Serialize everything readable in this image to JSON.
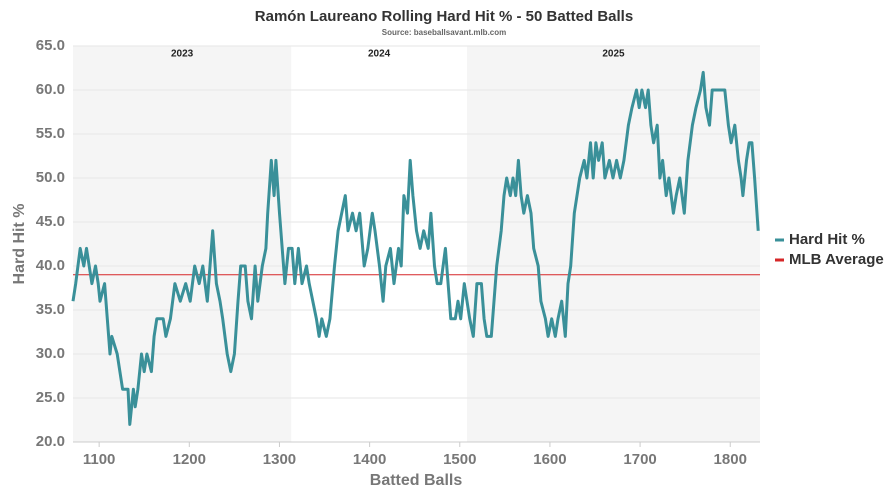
{
  "chart_data": {
    "type": "line",
    "title": "Ramón Laureano Rolling Hard Hit % - 50 Batted Balls",
    "subtitle": "Source: baseballsavant.mlb.com",
    "x_label": "Batted Balls",
    "y_label": "Hard Hit %",
    "xlim": [
      1071,
      1833
    ],
    "xticks": [
      1100,
      1200,
      1300,
      1400,
      1500,
      1600,
      1700,
      1800
    ],
    "ylim": [
      20,
      65
    ],
    "yticks": [
      {
        "value": 20,
        "label": "20.0"
      },
      {
        "value": 25,
        "label": "25.0"
      },
      {
        "value": 30,
        "label": "30.0"
      },
      {
        "value": 35,
        "label": "35.0"
      },
      {
        "value": 40,
        "label": "40.0"
      },
      {
        "value": 45,
        "label": "45.0"
      },
      {
        "value": 50,
        "label": "50.0"
      },
      {
        "value": 55,
        "label": "55.0"
      },
      {
        "value": 60,
        "label": "60.0"
      },
      {
        "value": 65,
        "label": "65.0"
      }
    ],
    "grid": true,
    "legend": "right",
    "seasons": [
      {
        "label": "2023",
        "start": 1071,
        "end": 1313,
        "shaded": true
      },
      {
        "label": "2024",
        "start": 1313,
        "end": 1508,
        "shaded": false
      },
      {
        "label": "2025",
        "start": 1508,
        "end": 1833,
        "shaded": true
      }
    ],
    "reference_line": {
      "name": "MLB Average",
      "value": 39,
      "color": "#d62728"
    },
    "series": [
      {
        "name": "Hard Hit %",
        "color": "#3a9099",
        "x": [
          1071,
          1074,
          1079,
          1083,
          1086,
          1089,
          1092,
          1096,
          1099,
          1101,
          1106,
          1109,
          1112,
          1114,
          1120,
          1123,
          1126,
          1132,
          1134,
          1138,
          1140,
          1143,
          1147,
          1150,
          1153,
          1158,
          1161,
          1164,
          1171,
          1174,
          1179,
          1184,
          1190,
          1196,
          1201,
          1206,
          1211,
          1215,
          1220,
          1226,
          1230,
          1234,
          1237,
          1242,
          1246,
          1250,
          1254,
          1257,
          1262,
          1265,
          1269,
          1273,
          1276,
          1281,
          1285,
          1287,
          1291,
          1294,
          1296,
          1300,
          1303,
          1306,
          1310,
          1314,
          1317,
          1321,
          1325,
          1330,
          1333,
          1337,
          1341,
          1344,
          1347,
          1352,
          1356,
          1361,
          1365,
          1369,
          1373,
          1376,
          1381,
          1385,
          1389,
          1394,
          1398,
          1403,
          1406,
          1411,
          1415,
          1418,
          1423,
          1427,
          1432,
          1435,
          1438,
          1442,
          1445,
          1448,
          1452,
          1456,
          1460,
          1465,
          1468,
          1472,
          1475,
          1479,
          1484,
          1487,
          1490,
          1495,
          1498,
          1501,
          1505,
          1508,
          1511,
          1515,
          1519,
          1524,
          1527,
          1530,
          1535,
          1538,
          1541,
          1546,
          1549,
          1552,
          1556,
          1559,
          1562,
          1565,
          1568,
          1571,
          1575,
          1579,
          1582,
          1587,
          1590,
          1595,
          1598,
          1602,
          1606,
          1609,
          1613,
          1617,
          1620,
          1623,
          1627,
          1630,
          1633,
          1638,
          1641,
          1645,
          1648,
          1651,
          1654,
          1658,
          1661,
          1666,
          1670,
          1674,
          1678,
          1682,
          1687,
          1691,
          1696,
          1699,
          1702,
          1706,
          1709,
          1712,
          1715,
          1719,
          1722,
          1725,
          1729,
          1732,
          1737,
          1740,
          1744,
          1749,
          1753,
          1758,
          1762,
          1767,
          1770,
          1773,
          1777,
          1780,
          1784,
          1789,
          1794,
          1798,
          1801,
          1805,
          1809,
          1812,
          1814,
          1818,
          1821,
          1824,
          1827,
          1831
        ],
        "values": [
          36,
          38,
          42,
          40,
          42,
          40,
          38,
          40,
          38,
          36,
          38,
          34,
          30,
          32,
          30,
          28,
          26,
          26,
          22,
          26,
          24,
          26,
          30,
          28,
          30,
          28,
          32,
          34,
          34,
          32,
          34,
          38,
          36,
          38,
          36,
          40,
          38,
          40,
          36,
          44,
          38,
          36,
          34,
          30,
          28,
          30,
          36,
          40,
          40,
          36,
          34,
          40,
          36,
          40,
          42,
          46,
          52,
          48,
          52,
          46,
          42,
          38,
          42,
          42,
          38,
          42,
          38,
          40,
          38,
          36,
          34,
          32,
          34,
          32,
          34,
          40,
          44,
          46,
          48,
          44,
          46,
          44,
          46,
          40,
          42,
          46,
          44,
          40,
          36,
          40,
          42,
          38,
          42,
          40,
          48,
          46,
          52,
          48,
          44,
          42,
          44,
          42,
          46,
          40,
          38,
          38,
          42,
          38,
          34,
          34,
          36,
          34,
          38,
          36,
          34,
          32,
          38,
          38,
          34,
          32,
          32,
          36,
          40,
          44,
          48,
          50,
          48,
          50,
          48,
          52,
          48,
          46,
          48,
          46,
          42,
          40,
          36,
          34,
          32,
          34,
          32,
          34,
          36,
          32,
          38,
          40,
          46,
          48,
          50,
          52,
          50,
          54,
          50,
          54,
          52,
          54,
          50,
          52,
          50,
          52,
          50,
          52,
          56,
          58,
          60,
          58,
          60,
          58,
          60,
          56,
          54,
          56,
          50,
          52,
          48,
          50,
          46,
          48,
          50,
          46,
          52,
          56,
          58,
          60,
          62,
          58,
          56,
          60,
          60,
          60,
          60,
          56,
          54,
          56,
          52,
          50,
          48,
          52,
          54,
          54,
          50,
          44
        ]
      }
    ]
  }
}
